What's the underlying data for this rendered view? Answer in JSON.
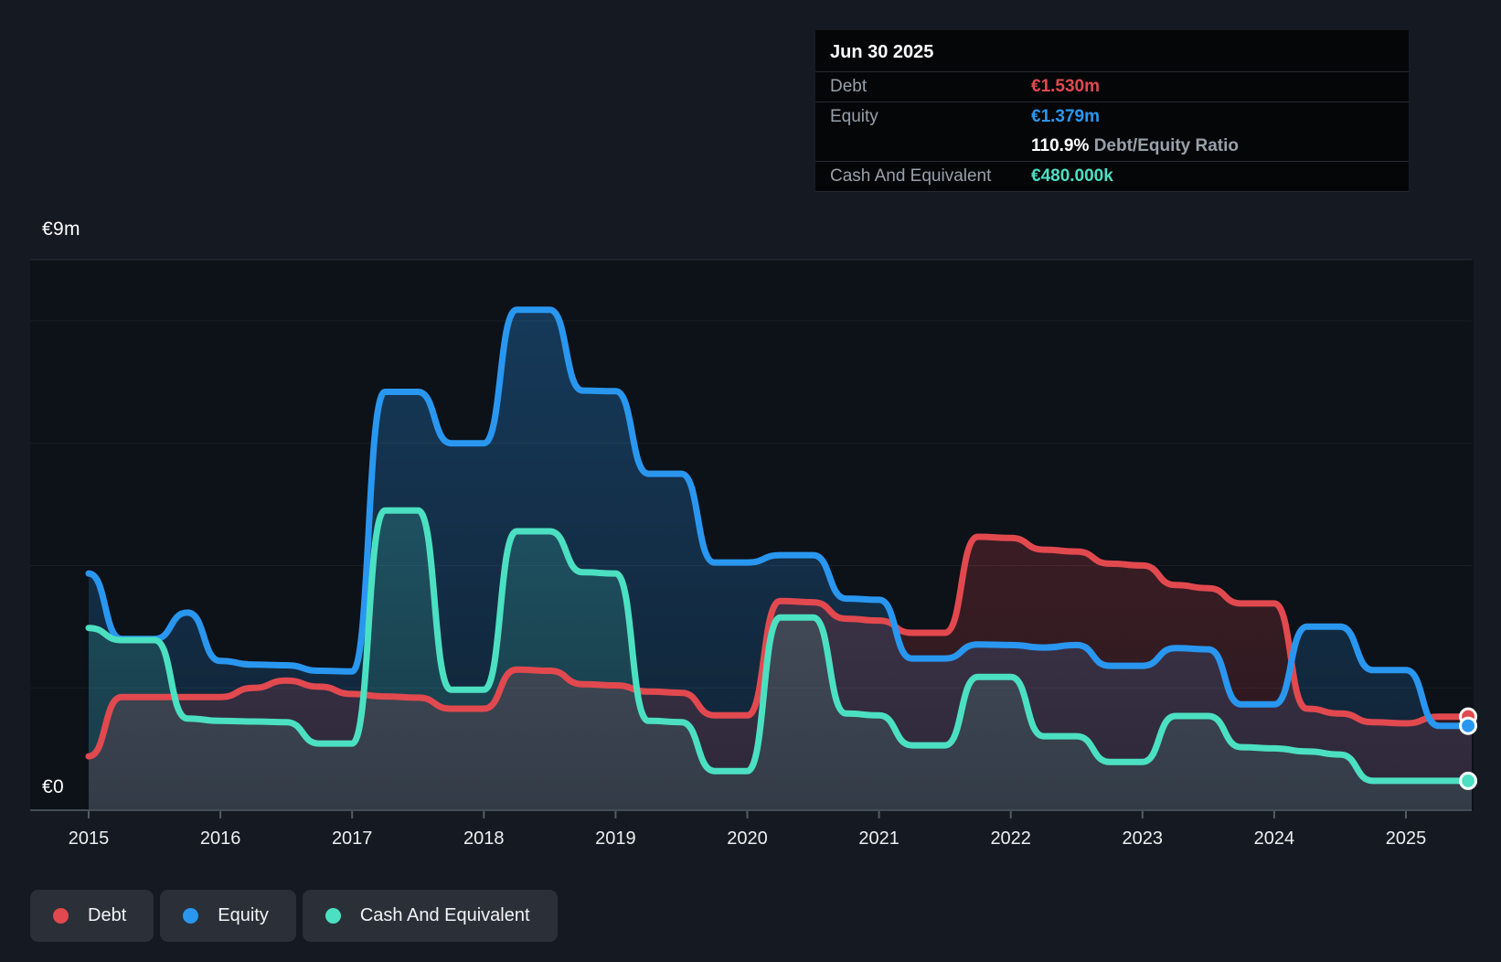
{
  "chart_data": {
    "type": "area",
    "description": "Debt / Equity / Cash and equivalents history, step-interpolated area-line chart",
    "currency": "EUR",
    "ylim": [
      0,
      9
    ],
    "grid_values": [
      2,
      4,
      6,
      8
    ],
    "top_grid_value": 9,
    "y_axis": {
      "top_label": "€9m",
      "zero_label": "€0"
    },
    "year_ticks": [
      2015,
      2016,
      2017,
      2018,
      2019,
      2020,
      2021,
      2022,
      2023,
      2024,
      2025
    ],
    "x": [
      2015.0,
      2015.25,
      2015.5,
      2015.75,
      2016.0,
      2016.25,
      2016.5,
      2016.75,
      2017.0,
      2017.25,
      2017.5,
      2017.75,
      2018.0,
      2018.25,
      2018.5,
      2018.75,
      2019.0,
      2019.25,
      2019.5,
      2019.75,
      2020.0,
      2020.25,
      2020.5,
      2020.75,
      2021.0,
      2021.25,
      2021.5,
      2021.75,
      2022.0,
      2022.25,
      2022.5,
      2022.75,
      2023.0,
      2023.25,
      2023.5,
      2023.75,
      2024.0,
      2024.25,
      2024.5,
      2024.75,
      2025.0,
      2025.25,
      2025.5
    ],
    "series": [
      {
        "name": "Debt",
        "color": "#e2494f",
        "values": [
          0.88,
          1.85,
          1.85,
          1.85,
          1.85,
          2.0,
          2.12,
          2.02,
          1.9,
          1.86,
          1.84,
          1.66,
          1.66,
          2.3,
          2.28,
          2.06,
          2.04,
          1.94,
          1.92,
          1.55,
          1.55,
          3.42,
          3.4,
          3.13,
          3.1,
          2.9,
          2.9,
          4.47,
          4.45,
          4.26,
          4.23,
          4.03,
          4.0,
          3.68,
          3.63,
          3.38,
          3.38,
          1.66,
          1.58,
          1.44,
          1.42,
          1.53,
          1.53
        ]
      },
      {
        "name": "Equity",
        "color": "#2997f0",
        "values": [
          3.87,
          2.8,
          2.8,
          3.23,
          2.44,
          2.38,
          2.37,
          2.28,
          2.27,
          6.84,
          6.84,
          6.0,
          6.0,
          8.18,
          8.18,
          6.86,
          6.85,
          5.5,
          5.5,
          4.05,
          4.05,
          4.17,
          4.17,
          3.46,
          3.44,
          2.48,
          2.48,
          2.71,
          2.7,
          2.66,
          2.7,
          2.36,
          2.36,
          2.65,
          2.63,
          1.73,
          1.73,
          3.0,
          3.0,
          2.29,
          2.29,
          1.38,
          1.38
        ]
      },
      {
        "name": "Cash And Equivalent",
        "color": "#4ce0c2",
        "values": [
          2.98,
          2.78,
          2.78,
          1.5,
          1.46,
          1.45,
          1.44,
          1.09,
          1.09,
          4.9,
          4.9,
          1.97,
          1.97,
          4.56,
          4.56,
          3.89,
          3.87,
          1.46,
          1.44,
          0.64,
          0.64,
          3.15,
          3.15,
          1.58,
          1.55,
          1.06,
          1.06,
          2.18,
          2.18,
          1.21,
          1.21,
          0.79,
          0.79,
          1.54,
          1.54,
          1.03,
          1.01,
          0.96,
          0.91,
          0.48,
          0.48,
          0.48,
          0.48
        ]
      }
    ]
  },
  "tooltip": {
    "date": "Jun 30 2025",
    "debt_label": "Debt",
    "debt_value": "€1.530m",
    "equity_label": "Equity",
    "equity_value": "€1.379m",
    "ratio_value": "110.9%",
    "ratio_label": "Debt/Equity Ratio",
    "cash_label": "Cash And Equivalent",
    "cash_value": "€480.000k"
  },
  "legend": {
    "items": [
      {
        "label": "Debt"
      },
      {
        "label": "Equity"
      },
      {
        "label": "Cash And Equivalent"
      }
    ]
  },
  "colors": {
    "page_bg": "#151a22",
    "plot_bg": "#0d1118",
    "grid": "rgba(255,255,255,0.055)",
    "axis_line": "#454d56",
    "tick": "#545c66"
  }
}
